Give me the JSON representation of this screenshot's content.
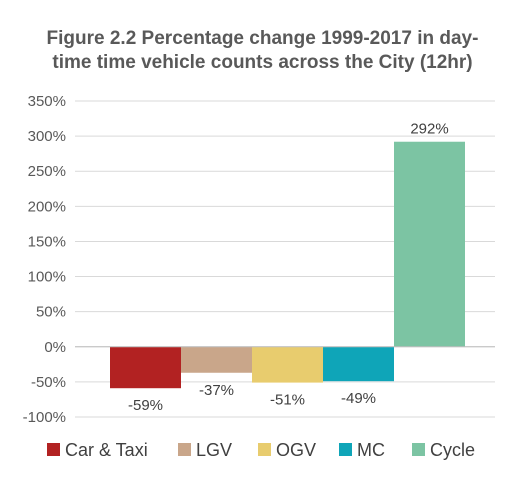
{
  "chart_data": {
    "type": "bar",
    "title_line1": "Figure 2.2 Percentage change 1999-2017 in day-",
    "title_line2": "time time vehicle counts across the City (12hr)",
    "categories": [
      "Car & Taxi",
      "LGV",
      "OGV",
      "MC",
      "Cycle"
    ],
    "values": [
      -59,
      -37,
      -51,
      -49,
      292
    ],
    "data_labels": [
      "-59%",
      "-37%",
      "-51%",
      "-49%",
      "292%"
    ],
    "colors": [
      "#B22222",
      "#C9A68A",
      "#E8CC6E",
      "#0FA5B8",
      "#7CC4A3"
    ],
    "ylim": [
      -100,
      350
    ],
    "ytick_values": [
      350,
      300,
      250,
      200,
      150,
      100,
      50,
      0,
      -50,
      -100
    ],
    "ytick_labels": [
      "350%",
      "300%",
      "250%",
      "200%",
      "150%",
      "100%",
      "50%",
      "0%",
      "-50%",
      "-100%"
    ],
    "grid": true,
    "legend_position": "bottom"
  }
}
